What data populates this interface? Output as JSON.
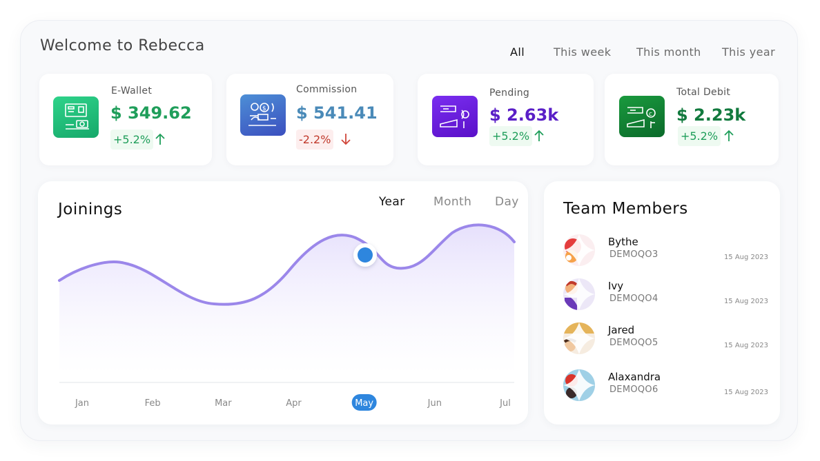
{
  "header": {
    "title": "Welcome to Rebecca",
    "filters": [
      "All",
      "This week",
      "This month",
      "This year"
    ],
    "active_filter": "All"
  },
  "cards": [
    {
      "label": "E-Wallet",
      "amount": "$ 349.62",
      "delta": "+5.2%",
      "trend": "up",
      "amount_color": "#1f9e5a",
      "icon": "wallet-icon"
    },
    {
      "label": "Commission",
      "amount": "$ 541.41",
      "delta": "-2.2%",
      "trend": "down",
      "amount_color": "#4a8ab8",
      "icon": "commission-icon"
    },
    {
      "label": "Pending",
      "amount": "$ 2.63k",
      "delta": "+5.2%",
      "trend": "up",
      "amount_color": "#5a1fc7",
      "icon": "pending-icon"
    },
    {
      "label": "Total Debit",
      "amount": "$ 2.23k",
      "delta": "+5.2%",
      "trend": "up",
      "amount_color": "#127a3e",
      "icon": "debit-icon"
    }
  ],
  "joinings": {
    "title": "Joinings",
    "tabs": [
      "Year",
      "Month",
      "Day"
    ],
    "active_tab": "Year",
    "selected_month": "May"
  },
  "chart_data": {
    "type": "area",
    "categories": [
      "Jan",
      "Feb",
      "Mar",
      "Apr",
      "May",
      "Jun",
      "Jul"
    ],
    "line_color": "#9b87ea",
    "fill_color": "#ede8fd",
    "highlight_color": "#2e86de"
  },
  "team": {
    "title": "Team Members",
    "members": [
      {
        "name": "Bythe",
        "code": "DEMOQO3",
        "date": "15 Aug 2023"
      },
      {
        "name": "Ivy",
        "code": "DEMOQO4",
        "date": "15 Aug 2023"
      },
      {
        "name": "Jared",
        "code": "DEMOQO5",
        "date": "15 Aug 2023"
      },
      {
        "name": "Alaxandra",
        "code": "DEMOQO6",
        "date": "15 Aug 2023"
      }
    ]
  }
}
